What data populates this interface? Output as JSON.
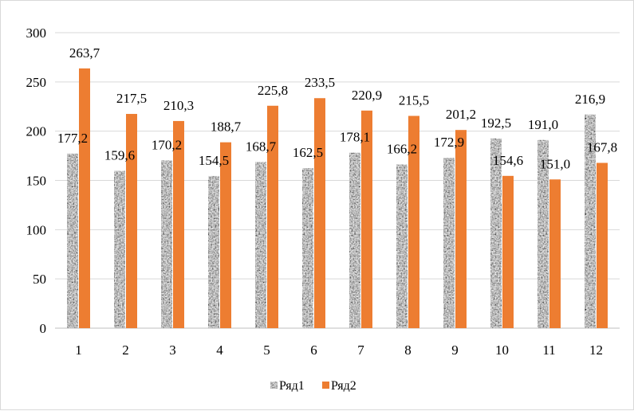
{
  "chart_data": {
    "type": "bar",
    "title": "",
    "xlabel": "",
    "ylabel": "",
    "categories": [
      "1",
      "2",
      "3",
      "4",
      "5",
      "6",
      "7",
      "8",
      "9",
      "10",
      "11",
      "12"
    ],
    "series": [
      {
        "name": "Ряд1",
        "values": [
          177.2,
          159.6,
          170.2,
          154.5,
          168.7,
          162.5,
          178.1,
          166.2,
          172.9,
          192.5,
          191.0,
          216.9
        ],
        "labels": [
          "177,2",
          "159,6",
          "170,2",
          "154,5",
          "168,7",
          "162,5",
          "178,1",
          "166,2",
          "172,9",
          "192,5",
          "191,0",
          "216,9"
        ],
        "color": "#8c8c8c",
        "fill": "textured-gray"
      },
      {
        "name": "Ряд2",
        "values": [
          263.7,
          217.5,
          210.3,
          188.7,
          225.8,
          233.5,
          220.9,
          215.5,
          201.2,
          154.6,
          151.0,
          167.8
        ],
        "labels": [
          "263,7",
          "217,5",
          "210,3",
          "188,7",
          "225,8",
          "233,5",
          "220,9",
          "215,5",
          "201,2",
          "154,6",
          "151,0",
          "167,8"
        ],
        "color": "#ed7d31"
      }
    ],
    "ylim": [
      0,
      300
    ],
    "yticks": [
      "0",
      "50",
      "100",
      "150",
      "200",
      "250",
      "300"
    ],
    "ytick_values": [
      0,
      50,
      100,
      150,
      200,
      250,
      300
    ],
    "grid": true,
    "legend": "bottom"
  }
}
